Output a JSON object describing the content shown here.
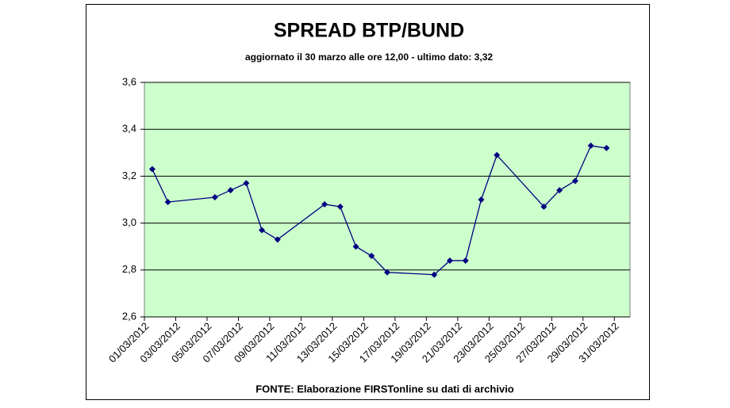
{
  "chart_data": {
    "type": "line",
    "title": "SPREAD BTP/BUND",
    "subtitle": "aggiornato il 30 marzo alle ore 12,00 - ultimo dato: 3,32",
    "source": "FONTE: Elaborazione FIRSTonline su dati di archivio",
    "x": [
      "2012-03-01",
      "2012-03-02",
      "2012-03-05",
      "2012-03-06",
      "2012-03-07",
      "2012-03-08",
      "2012-03-09",
      "2012-03-12",
      "2012-03-13",
      "2012-03-14",
      "2012-03-15",
      "2012-03-16",
      "2012-03-19",
      "2012-03-20",
      "2012-03-21",
      "2012-03-22",
      "2012-03-23",
      "2012-03-26",
      "2012-03-27",
      "2012-03-28",
      "2012-03-29",
      "2012-03-30"
    ],
    "series": [
      {
        "color": "#000080",
        "values": [
          3.23,
          3.09,
          3.11,
          3.14,
          3.17,
          2.97,
          2.93,
          3.08,
          3.07,
          2.9,
          2.86,
          2.79,
          2.78,
          2.84,
          2.84,
          3.1,
          3.29,
          3.07,
          3.14,
          3.18,
          3.33,
          3.32
        ]
      }
    ],
    "xlim": [
      "2012-03-01",
      "2012-04-01"
    ],
    "xticks": [
      {
        "value": "2012-03-01",
        "label": "01/03/2012"
      },
      {
        "value": "2012-03-03",
        "label": "03/03/2012"
      },
      {
        "value": "2012-03-05",
        "label": "05/03/2012"
      },
      {
        "value": "2012-03-07",
        "label": "07/03/2012"
      },
      {
        "value": "2012-03-09",
        "label": "09/03/2012"
      },
      {
        "value": "2012-03-11",
        "label": "11/03/2012"
      },
      {
        "value": "2012-03-13",
        "label": "13/03/2012"
      },
      {
        "value": "2012-03-15",
        "label": "15/03/2012"
      },
      {
        "value": "2012-03-17",
        "label": "17/03/2012"
      },
      {
        "value": "2012-03-19",
        "label": "19/03/2012"
      },
      {
        "value": "2012-03-21",
        "label": "21/03/2012"
      },
      {
        "value": "2012-03-23",
        "label": "23/03/2012"
      },
      {
        "value": "2012-03-25",
        "label": "25/03/2012"
      },
      {
        "value": "2012-03-27",
        "label": "27/03/2012"
      },
      {
        "value": "2012-03-29",
        "label": "29/03/2012"
      },
      {
        "value": "2012-03-31",
        "label": "31/03/2012"
      }
    ],
    "ylim": [
      2.6,
      3.6
    ],
    "yticks": [
      {
        "value": 2.6,
        "label": "2,6"
      },
      {
        "value": 2.8,
        "label": "2,8"
      },
      {
        "value": 3.0,
        "label": "3,0"
      },
      {
        "value": 3.2,
        "label": "3,2"
      },
      {
        "value": 3.4,
        "label": "3,4"
      },
      {
        "value": 3.6,
        "label": "3,6"
      }
    ],
    "grid": true,
    "plot_color": "#ccffcc"
  }
}
